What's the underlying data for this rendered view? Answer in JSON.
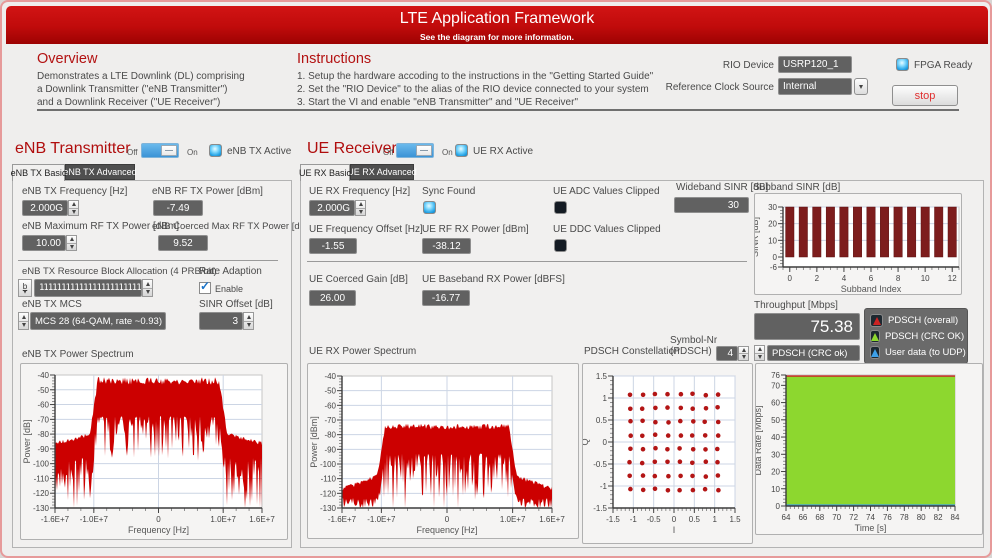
{
  "banner": {
    "title": "LTE Application Framework",
    "subtitle": "See the diagram for more information."
  },
  "info": {
    "overview": {
      "heading": "Overview",
      "lines": [
        "Demonstrates a LTE Downlink (DL) comprising",
        "a Downlink Transmitter (\"eNB Transmitter\")",
        "and a Downlink Receiver (\"UE Receiver\")"
      ]
    },
    "instructions": {
      "heading": "Instructions",
      "lines": [
        "1. Setup the hardware accoding to the instructions in the \"Getting Started Guide\"",
        "2. Set the \"RIO Device\" to the alias of the RIO device connected to your system",
        "3. Start the VI and enable \"eNB Transmitter\" and \"UE Receiver\""
      ]
    },
    "rio_label": "RIO Device",
    "rio_value": "USRP120_1",
    "refclk_label": "Reference Clock Source",
    "refclk_value": "Internal",
    "fpga_label": "FPGA Ready",
    "stop_label": "stop"
  },
  "enb": {
    "title": "eNB Transmitter",
    "off": "Off",
    "on": "On",
    "active_label": "eNB TX Active",
    "tabs": [
      "eNB TX Basic",
      "eNB TX Advanced"
    ],
    "freq_label": "eNB TX Frequency [Hz]",
    "freq_value": "2.000G",
    "rf_power_label": "eNB RF TX Power [dBm]",
    "rf_power_value": "-7.49",
    "max_power_label": "eNB Maximum RF TX Power [dBm]",
    "max_power_value": "10.00",
    "coerced_label": "eNB Coerced Max RF TX Power [dBm]",
    "coerced_value": "9.52",
    "rb_label": "eNB TX Resource Block Allocation (4 PRB/bit)",
    "rb_radix": "b",
    "rb_value": "1111111111111111111111111",
    "rate_adaption_label": "Rate Adaption",
    "enable_label": "Enable",
    "mcs_label": "eNB TX MCS",
    "mcs_value": "MCS 28 (64-QAM, rate ~0.93)",
    "sinr_offset_label": "SINR Offset [dB]",
    "sinr_offset_value": "3",
    "spectrum_title": "eNB TX Power Spectrum"
  },
  "ue": {
    "title": "UE Receiver",
    "off": "Off",
    "on": "On",
    "active_label": "UE RX Active",
    "tabs": [
      "UE RX Basic",
      "UE RX Advanced"
    ],
    "freq_label": "UE RX Frequency [Hz]",
    "freq_value": "2.000G",
    "sync_label": "Sync Found",
    "adc_label": "UE ADC Values Clipped",
    "ddc_label": "UE DDC Values Clipped",
    "freq_offset_label": "UE Frequency Offset [Hz]",
    "freq_offset_value": "-1.55",
    "rf_rx_label": "UE RF RX Power [dBm]",
    "rf_rx_value": "-38.12",
    "gain_label": "UE Coerced Gain [dB]",
    "gain_value": "26.00",
    "bb_label": "UE Baseband RX Power [dBFS]",
    "bb_value": "-16.77",
    "spectrum_title": "UE RX Power Spectrum",
    "constellation_title": "PDSCH Constellation",
    "symbolnr_label1": "Symbol-Nr",
    "symbolnr_label2": "(PDSCH)",
    "symbolnr_value": "4"
  },
  "sinr": {
    "wideband_label": "Wideband SINR [dB]",
    "wideband_value": "30",
    "subband_label": "Subband SINR [dB]"
  },
  "throughput": {
    "label": "Throughput [Mbps]",
    "value": "75.38",
    "ring_value": "PDSCH (CRC ok)",
    "legend": [
      {
        "label": "PDSCH (overall)",
        "color": "#cc2222"
      },
      {
        "label": "PDSCH (CRC OK)",
        "color": "#8dd72f"
      },
      {
        "label": "User data (to UDP)",
        "color": "#3da0e8"
      }
    ]
  },
  "icons": {
    "check": "✓"
  },
  "chart_data": [
    {
      "id": "enb_spectrum",
      "type": "spectrum",
      "title": "eNB TX Power Spectrum",
      "xlabel": "Frequency [Hz]",
      "ylabel": "Power [dB]",
      "xlim": [
        -16000000,
        16000000
      ],
      "ylim": [
        -130,
        -40
      ],
      "xticks": [
        {
          "v": -16000000,
          "label": "-1.6E+7"
        },
        {
          "v": -10000000,
          "label": "-1.0E+7"
        },
        {
          "v": 0,
          "label": "0"
        },
        {
          "v": 10000000,
          "label": "1.0E+7"
        },
        {
          "v": 16000000,
          "label": "1.6E+7"
        }
      ],
      "yticks": [
        -40,
        -50,
        -60,
        -70,
        -80,
        -90,
        -100,
        -110,
        -120,
        -130
      ],
      "xminor": 2000000,
      "yminor": 2,
      "grid_x": [
        -10000000,
        0,
        10000000
      ],
      "grid_y": [
        -50,
        -60,
        -70,
        -80,
        -90,
        -100,
        -110,
        -120
      ],
      "signal_band": [
        -10000000,
        10000000
      ],
      "envelope": {
        "top_in": -44,
        "top_jit": 2.5,
        "bot_in": -68,
        "bot_in_spike": 30,
        "top_out_far": -86,
        "top_out_near": -79,
        "bot_out": -96,
        "bot_out_spike": 36,
        "edge": 600000
      },
      "color": "#cc0000",
      "seed": 11
    },
    {
      "id": "ue_spectrum",
      "type": "spectrum",
      "title": "UE RX Power Spectrum",
      "xlabel": "Frequency [Hz]",
      "ylabel": "Power [dBm]",
      "xlim": [
        -16000000,
        16000000
      ],
      "ylim": [
        -130,
        -40
      ],
      "xticks": [
        {
          "v": -16000000,
          "label": "-1.6E+7"
        },
        {
          "v": -10000000,
          "label": "-1.0E+7"
        },
        {
          "v": 0,
          "label": "0"
        },
        {
          "v": 10000000,
          "label": "1.0E+7"
        },
        {
          "v": 16000000,
          "label": "1.6E+7"
        }
      ],
      "yticks": [
        -40,
        -50,
        -60,
        -70,
        -80,
        -90,
        -100,
        -110,
        -120,
        -130
      ],
      "xminor": 2000000,
      "yminor": 2,
      "grid_x": [
        -10000000,
        0,
        10000000
      ],
      "grid_y": [
        -50,
        -60,
        -70,
        -80,
        -90,
        -100,
        -110,
        -120
      ],
      "signal_band": [
        -10000000,
        10000000
      ],
      "envelope": {
        "top_in": -74.5,
        "top_jit": 2,
        "bot_in": -93,
        "bot_in_spike": 32,
        "top_out_far": -117,
        "top_out_near": -106,
        "bot_out": -123,
        "bot_out_spike": 8,
        "edge": 600000
      },
      "color": "#cc0000",
      "seed": 23
    },
    {
      "id": "pdsch_constellation",
      "type": "scatter",
      "title": "PDSCH Constellation",
      "xlabel": "I",
      "ylabel": "Q",
      "xlim": [
        -1.5,
        1.5
      ],
      "ylim": [
        -1.5,
        1.5
      ],
      "xticks": [
        -1.5,
        -1,
        -0.5,
        0,
        0.5,
        1,
        1.5
      ],
      "yticks": [
        -1.5,
        -1,
        -0.5,
        0,
        0.5,
        1,
        1.5
      ],
      "xminor": 0.1,
      "yminor": 0.1,
      "grid_x": [
        -1.5,
        -1,
        -0.5,
        0,
        0.5,
        1,
        1.5
      ],
      "grid_y": [
        -1.5,
        -1,
        -0.5,
        0,
        0.5,
        1,
        1.5
      ],
      "levels": [
        -1.08,
        -0.772,
        -0.463,
        -0.154,
        0.154,
        0.463,
        0.772,
        1.08
      ],
      "dot_radius": 2.3,
      "jitter": 0.018,
      "color": "#b31515",
      "seed": 5
    },
    {
      "id": "subband_sinr",
      "type": "bar",
      "title": "Subband SINR [dB]",
      "xlabel": "Subband Index",
      "ylabel": "SINR [dB]",
      "xlim": [
        -0.5,
        12.5
      ],
      "ylim": [
        -6,
        30
      ],
      "xticks": [
        0,
        2,
        4,
        6,
        8,
        10,
        12
      ],
      "yticks": [
        30,
        20,
        10,
        0,
        -6
      ],
      "xminor": 0.5,
      "yminor": 2,
      "grid_y": [
        10,
        20,
        30
      ],
      "categories": [
        0,
        1,
        2,
        3,
        4,
        5,
        6,
        7,
        8,
        9,
        10,
        11,
        12
      ],
      "values": [
        30,
        30,
        30,
        30,
        30,
        30,
        30,
        30,
        30,
        30,
        30,
        30,
        30
      ],
      "bar_width": 0.62,
      "color": "#7d1d1d"
    },
    {
      "id": "data_rate",
      "type": "datarate",
      "xlabel": "Time [s]",
      "ylabel": "Data Rate [Mbps]",
      "xlim": [
        64,
        84
      ],
      "ylim": [
        0,
        76
      ],
      "xticks": [
        64,
        66,
        68,
        70,
        72,
        74,
        76,
        78,
        80,
        82,
        84
      ],
      "yticks": [
        0,
        10,
        20,
        30,
        40,
        50,
        60,
        70,
        76
      ],
      "xminor": 0.5,
      "yminor": 2,
      "series": [
        {
          "name": "PDSCH (overall)",
          "value": 75.38,
          "color": "#cc2222"
        },
        {
          "name": "PDSCH (CRC OK)",
          "value": 75.38,
          "color": "#8dd72f"
        },
        {
          "name": "User data (to UDP)",
          "value": 0.5,
          "color": "#3da0e8"
        }
      ],
      "fill_color": "#8dd72f"
    }
  ]
}
